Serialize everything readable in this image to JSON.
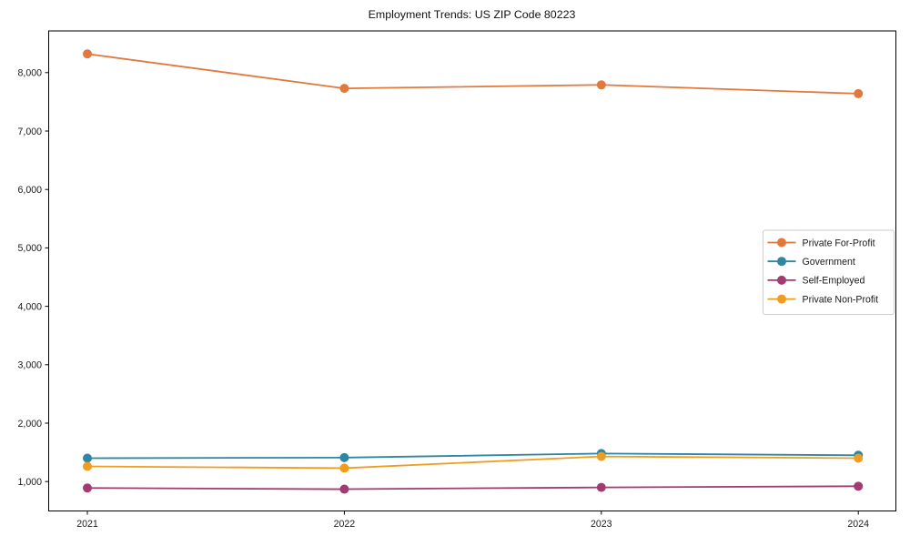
{
  "chart_data": {
    "type": "line",
    "title": "Employment Trends: US ZIP Code 80223",
    "categories": [
      "2021",
      "2022",
      "2023",
      "2024"
    ],
    "series": [
      {
        "name": "Private For-Profit",
        "color": "#E1793D",
        "values": [
          8320,
          7730,
          7790,
          7640
        ]
      },
      {
        "name": "Government",
        "color": "#2F86A2",
        "values": [
          1400,
          1410,
          1480,
          1450
        ]
      },
      {
        "name": "Self-Employed",
        "color": "#A23B72",
        "values": [
          890,
          870,
          900,
          920
        ]
      },
      {
        "name": "Private Non-Profit",
        "color": "#EF9D1F",
        "values": [
          1260,
          1230,
          1430,
          1400
        ]
      }
    ],
    "yticks": [
      1000,
      2000,
      3000,
      4000,
      5000,
      6000,
      7000,
      8000
    ],
    "ytick_labels": [
      "1,000",
      "2,000",
      "3,000",
      "4,000",
      "5,000",
      "6,000",
      "7,000",
      "8,000"
    ],
    "ylim": [
      500,
      8700
    ],
    "xlabel": "",
    "ylabel": "",
    "grid": false,
    "legend_position": "center-right",
    "marker": "circle",
    "spine_color": "#000000",
    "legend_border_color": "#cccccc"
  }
}
